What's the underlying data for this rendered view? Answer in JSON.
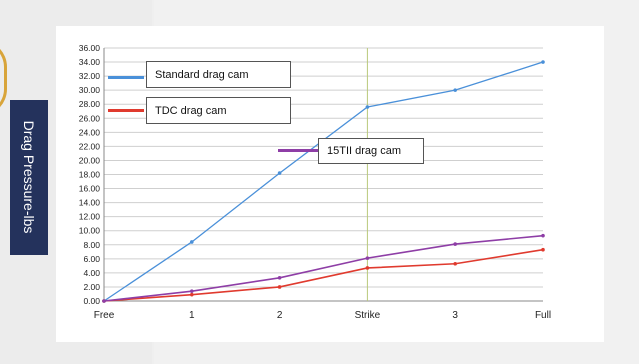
{
  "y_axis_title": "Drag Pressure-lbs",
  "chart_data": {
    "type": "line",
    "title": "",
    "xlabel": "",
    "ylabel": "Drag Pressure-lbs",
    "categories": [
      "Free",
      "1",
      "2",
      "Strike",
      "3",
      "Full"
    ],
    "ylim": [
      0,
      36
    ],
    "yticks": [
      "0.00",
      "2.00",
      "4.00",
      "6.00",
      "8.00",
      "10.00",
      "12.00",
      "14.00",
      "16.00",
      "18.00",
      "20.00",
      "22.00",
      "24.00",
      "26.00",
      "28.00",
      "30.00",
      "32.00",
      "34.00",
      "36.00"
    ],
    "grid": true,
    "reference_line_at": "Strike",
    "series": [
      {
        "name": "Standard drag cam",
        "color": "#4a90d9",
        "values": [
          0,
          8.4,
          18.2,
          27.6,
          30.0,
          34.0
        ]
      },
      {
        "name": "TDC  drag cam",
        "color": "#e03a2e",
        "values": [
          0,
          0.9,
          2.0,
          4.7,
          5.3,
          7.3
        ]
      },
      {
        "name": "15TII drag cam",
        "color": "#8e3ea6",
        "values": [
          0,
          1.4,
          3.3,
          6.1,
          8.1,
          9.3
        ]
      }
    ]
  }
}
